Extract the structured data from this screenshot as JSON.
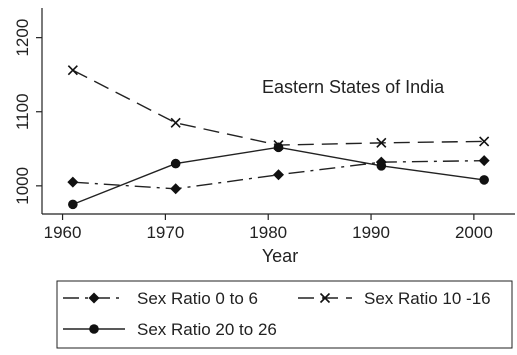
{
  "chart_data": {
    "type": "line",
    "x": [
      1961,
      1971,
      1981,
      1991,
      2001
    ],
    "xlabel": "Year",
    "ylabel": "",
    "xlim": [
      1958,
      2004
    ],
    "ylim": [
      962,
      1240
    ],
    "x_ticks": [
      1960,
      1970,
      1980,
      1990,
      2000
    ],
    "y_ticks": [
      1000,
      1100,
      1200
    ],
    "annotation": "Eastern States of India",
    "grid": false,
    "legend_position": "bottom",
    "series": [
      {
        "name": "Sex Ratio 0 to 6",
        "values": [
          1005,
          996,
          1015,
          1032,
          1034
        ],
        "marker": "diamond",
        "dash": "16,6,3,6",
        "color": "#222222"
      },
      {
        "name": "Sex Ratio 10 -16",
        "values": [
          1156,
          1085,
          1055,
          1058,
          1060
        ],
        "marker": "x",
        "dash": "16,8",
        "color": "#222222"
      },
      {
        "name": "Sex Ratio 20 to 26",
        "values": [
          975,
          1030,
          1052,
          1027,
          1008
        ],
        "marker": "circle",
        "dash": "",
        "color": "#222222"
      }
    ]
  }
}
